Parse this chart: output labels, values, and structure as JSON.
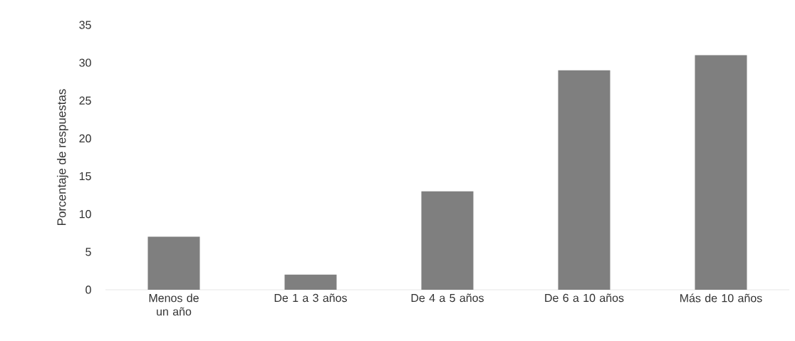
{
  "chart_data": {
    "type": "bar",
    "ylabel": "Porcentaje de respuestas",
    "categories": [
      "Menos de un año",
      "De 1 a 3 años",
      "De 4 a 5 años",
      "De 6 a 10 años",
      "Más de 10 años"
    ],
    "values": [
      7,
      2,
      13,
      29,
      31
    ],
    "color": "#7f7f7f",
    "ylim": [
      0,
      35
    ],
    "yticks": [
      0,
      5,
      10,
      15,
      20,
      25,
      30,
      35
    ]
  }
}
